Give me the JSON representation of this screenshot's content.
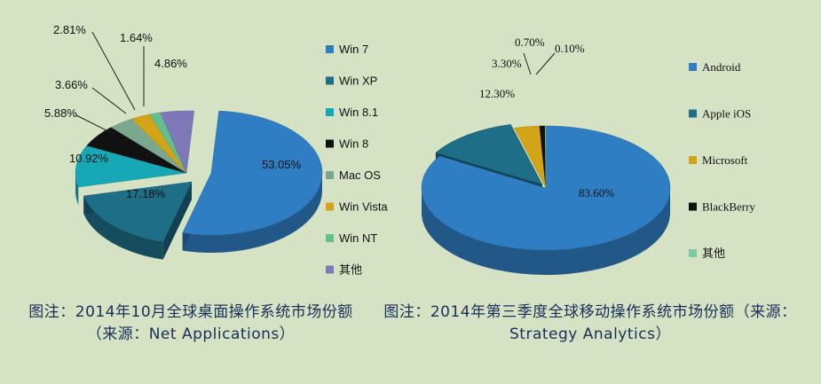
{
  "colors": {
    "background": "#d5e2c4",
    "caption": "#1a2e5a"
  },
  "chart_data": [
    {
      "type": "pie",
      "style": "3d-exploded",
      "categories": [
        "Win 7",
        "Win XP",
        "Win 8.1",
        "Win 8",
        "Mac OS",
        "Win Vista",
        "Win NT",
        "其他"
      ],
      "values": [
        53.05,
        17.18,
        10.92,
        5.88,
        3.66,
        2.81,
        1.64,
        4.86
      ],
      "value_labels": [
        "53.05%",
        "17.18%",
        "10.92%",
        "5.88%",
        "3.66%",
        "2.81%",
        "1.64%",
        "4.86%"
      ],
      "colors": [
        "#2f7dc2",
        "#1e6e87",
        "#17a8b8",
        "#111111",
        "#7aa88e",
        "#d3a417",
        "#63c08e",
        "#7f78b8"
      ],
      "legend_position": "right"
    },
    {
      "type": "pie",
      "style": "3d-exploded",
      "categories": [
        "Android",
        "Apple iOS",
        "Microsoft",
        "BlackBerry",
        "其他"
      ],
      "values": [
        83.6,
        12.3,
        3.3,
        0.7,
        0.1
      ],
      "value_labels": [
        "83.60%",
        "12.30%",
        "3.30%",
        "0.70%",
        "0.10%"
      ],
      "colors": [
        "#2f7dc2",
        "#1e6e87",
        "#d3a417",
        "#111111",
        "#7fc9a4"
      ],
      "legend_position": "right"
    }
  ],
  "captions": {
    "left": "图注：2014年10月全球桌面操作系统市场份额（来源：Net Applications）",
    "right": "图注：2014年第三季度全球移动操作系统市场份额（来源：Strategy Analytics）"
  }
}
